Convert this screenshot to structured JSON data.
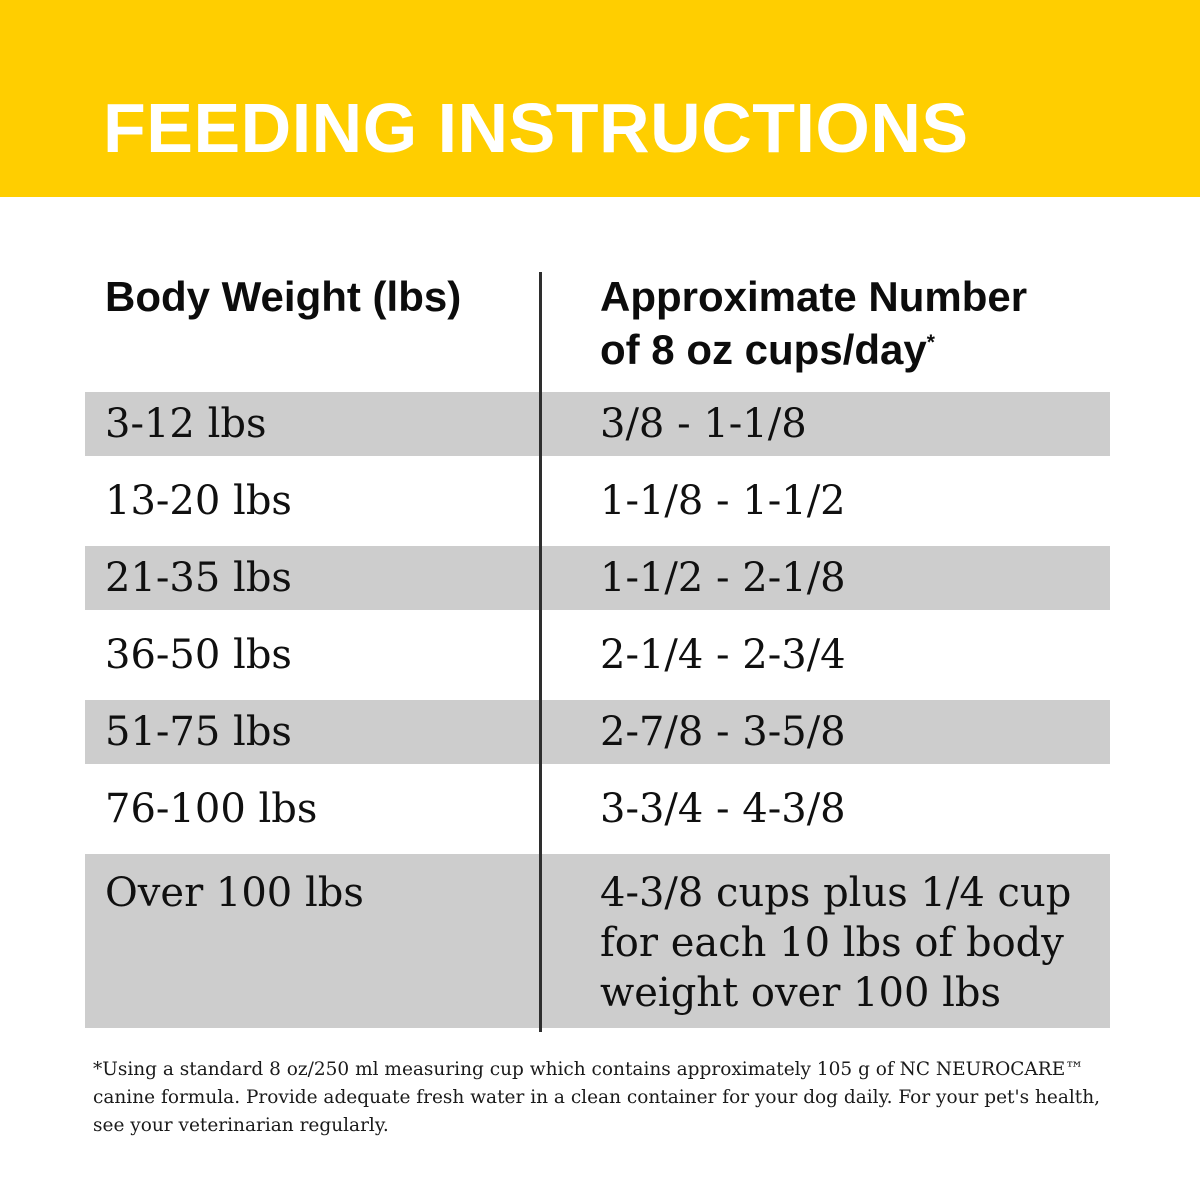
{
  "banner": {
    "title": "FEEDING INSTRUCTIONS",
    "background_color": "#FFCE00",
    "title_color": "#FFFFFF"
  },
  "table": {
    "columns": [
      {
        "label": "Body Weight (lbs)"
      },
      {
        "label": "Approximate Number of 8 oz cups/day",
        "lines": [
          "Approximate Number",
          "of 8 oz cups/day"
        ],
        "footnote_marker": "*"
      }
    ],
    "shade_color": "#CDCDCD",
    "rows": [
      {
        "weight": "3-12 lbs",
        "cups": "3/8 - 1-1/8",
        "shaded": true
      },
      {
        "weight": "13-20 lbs",
        "cups": "1-1/8 - 1-1/2",
        "shaded": false
      },
      {
        "weight": "21-35 lbs",
        "cups": "1-1/2 - 2-1/8",
        "shaded": true
      },
      {
        "weight": "36-50 lbs",
        "cups": "2-1/4 - 2-3/4",
        "shaded": false
      },
      {
        "weight": "51-75 lbs",
        "cups": "2-7/8 - 3-5/8",
        "shaded": true
      },
      {
        "weight": "76-100 lbs",
        "cups": "3-3/4 - 4-3/8",
        "shaded": false
      },
      {
        "weight": "Over 100 lbs",
        "cups": "4-3/8 cups plus 1/4 cup for each 10 lbs of body weight over 100 lbs",
        "shaded": true
      }
    ]
  },
  "footnote": {
    "text": "*Using a standard 8 oz/250 ml measuring cup which contains approximately 105 g of NC NEUROCARE™ canine formula. Provide adequate fresh water in a clean container for your dog daily. For your pet's health, see your veterinarian regularly."
  }
}
